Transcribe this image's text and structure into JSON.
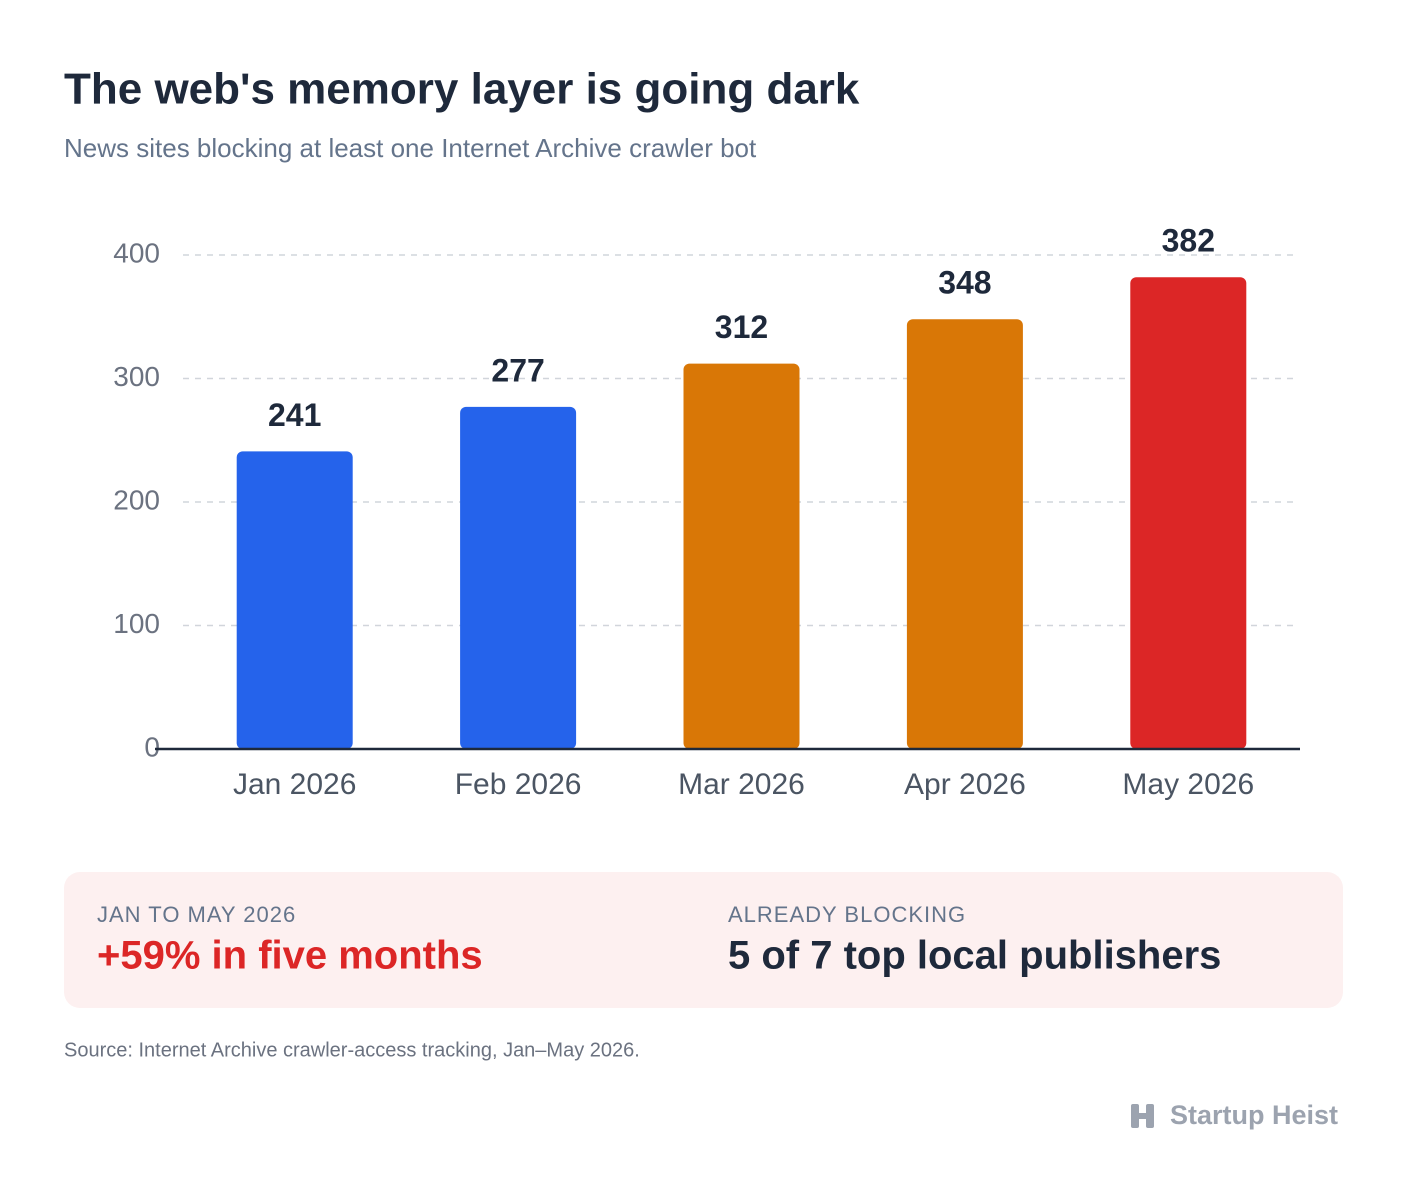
{
  "chart_data": {
    "type": "bar",
    "title": "The web's memory layer is going dark",
    "subtitle": "News sites blocking at least one Internet Archive crawler bot",
    "categories": [
      "Jan 2026",
      "Feb 2026",
      "Mar 2026",
      "Apr 2026",
      "May 2026"
    ],
    "values": [
      241,
      277,
      312,
      348,
      382
    ],
    "colors": [
      "#2563eb",
      "#2563eb",
      "#d97706",
      "#d97706",
      "#dc2626"
    ],
    "ylim": [
      0,
      400
    ],
    "yticks": [
      0,
      100,
      200,
      300,
      400
    ],
    "grid": true
  },
  "callouts": [
    {
      "label": "JAN TO MAY 2026",
      "text": "+59% in five months"
    },
    {
      "label": "ALREADY BLOCKING",
      "text": "5 of 7 top local publishers"
    }
  ],
  "source": "Source: Internet Archive crawler-access tracking, Jan–May 2026.",
  "brand": "Startup Heist"
}
